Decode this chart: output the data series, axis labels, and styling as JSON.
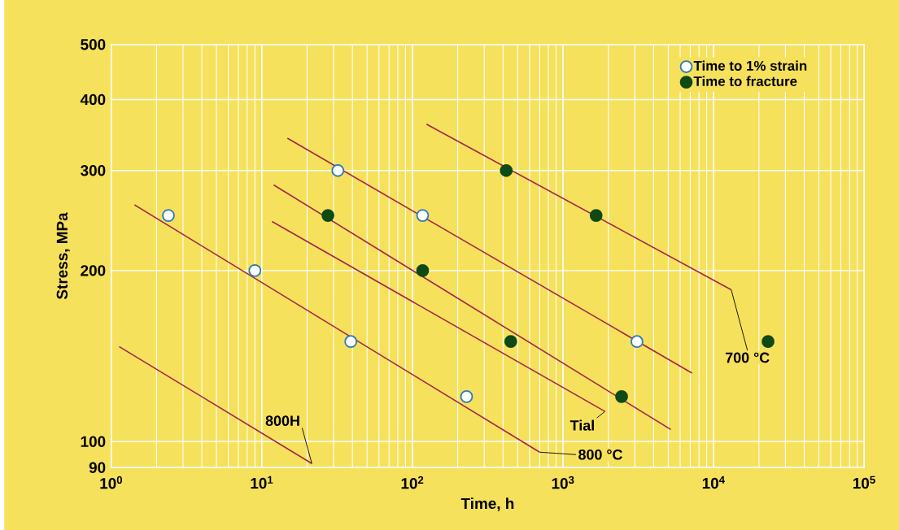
{
  "chart_data": {
    "type": "scatter",
    "xlabel": "Time,  h",
    "ylabel": "Stress,  MPa",
    "log": "xy",
    "grid": true,
    "legend": "top right",
    "xlim": [
      1,
      100000
    ],
    "ylim": [
      90,
      500
    ],
    "xticks": [
      {
        "value": 1,
        "label": "10$^{0}$"
      },
      {
        "value": 10,
        "label": "10$^{1}$"
      },
      {
        "value": 100,
        "label": "10$^{2}$"
      },
      {
        "value": 1000,
        "label": "10$^{3}$"
      },
      {
        "value": 10000,
        "label": "10$^{4}$"
      },
      {
        "value": 100000,
        "label": "10$^{5}$"
      }
    ],
    "yticks": [
      90,
      100,
      200,
      300,
      400,
      500
    ],
    "series": [
      {
        "name": "Time to 1% strain",
        "marker": "circle",
        "color": "#2a7ab8",
        "x": [
          2.4,
          9,
          32,
          117,
          39,
          229,
          3100
        ],
        "values": [
          250,
          200,
          300,
          250,
          150,
          120,
          150
        ]
      },
      {
        "name": "Time to fracture",
        "marker": "circle",
        "color": "#0e4a14",
        "x": [
          420,
          1660,
          27.5,
          117,
          450,
          2450,
          23000
        ],
        "values": [
          300,
          250,
          250,
          200,
          150,
          120,
          150
        ]
      },
      {
        "type": "line",
        "marker": "none",
        "line_style": "solid",
        "color": "#a3254a",
        "x": [
          124,
          13100
        ],
        "values": [
          362,
          185
        ]
      },
      {
        "type": "line",
        "marker": "none",
        "line_style": "solid",
        "color": "#a3254a",
        "x": [
          14.8,
          7200
        ],
        "values": [
          342,
          132
        ]
      },
      {
        "type": "line",
        "marker": "none",
        "line_style": "solid",
        "color": "#a3254a",
        "x": [
          12,
          5200
        ],
        "values": [
          283,
          105
        ]
      },
      {
        "type": "line",
        "marker": "none",
        "line_style": "solid",
        "color": "#a3254a",
        "x": [
          11.7,
          1900
        ],
        "values": [
          244,
          113
        ]
      },
      {
        "type": "line",
        "marker": "none",
        "line_style": "solid",
        "color": "#a3254a",
        "x": [
          1.43,
          700
        ],
        "values": [
          261,
          95.8
        ]
      },
      {
        "type": "line",
        "marker": "none",
        "line_style": "solid",
        "color": "#a3254a",
        "x": [
          1.13,
          21.5
        ],
        "values": [
          147,
          91.5
        ]
      }
    ],
    "annotations": [
      {
        "text": "700 °C",
        "x": 13100,
        "y": 185
      },
      {
        "text": "Tial",
        "x": 1900,
        "y": 113
      },
      {
        "text": "800H",
        "x": 21.5,
        "y": 91.5
      },
      {
        "text": "800 °C",
        "x": 700,
        "y": 95.8
      }
    ]
  }
}
